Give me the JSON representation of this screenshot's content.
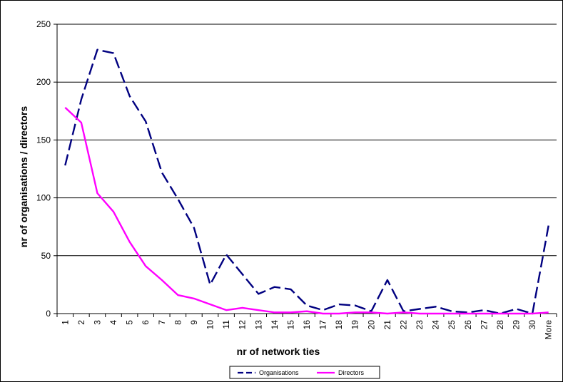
{
  "chart_data": {
    "type": "line",
    "xlabel": "nr of network ties",
    "ylabel": "nr of organisations / directors",
    "categories": [
      "1",
      "2",
      "3",
      "4",
      "5",
      "6",
      "7",
      "8",
      "9",
      "10",
      "11",
      "12",
      "13",
      "14",
      "15",
      "16",
      "17",
      "18",
      "19",
      "20",
      "21",
      "22",
      "23",
      "24",
      "25",
      "26",
      "27",
      "28",
      "29",
      "30",
      "More"
    ],
    "ylim": [
      0,
      250
    ],
    "yticks": [
      0,
      50,
      100,
      150,
      200,
      250
    ],
    "grid": true,
    "legend_position": "bottom",
    "series": [
      {
        "name": "Organisations",
        "color": "#000080",
        "dash": "dashed",
        "values": [
          128,
          185,
          228,
          225,
          188,
          166,
          122,
          99,
          74,
          25,
          51,
          34,
          17,
          23,
          21,
          7,
          3,
          8,
          7,
          2,
          29,
          2,
          4,
          6,
          2,
          1,
          3,
          0,
          4,
          0,
          76
        ]
      },
      {
        "name": "Directors",
        "color": "#ff00ff",
        "dash": "solid",
        "values": [
          178,
          165,
          104,
          88,
          62,
          41,
          29,
          16,
          13,
          8,
          3,
          5,
          3,
          1,
          1,
          2,
          0,
          0,
          1,
          1,
          0,
          1,
          0,
          0,
          0,
          0,
          0,
          0,
          0,
          0,
          1
        ]
      }
    ]
  }
}
